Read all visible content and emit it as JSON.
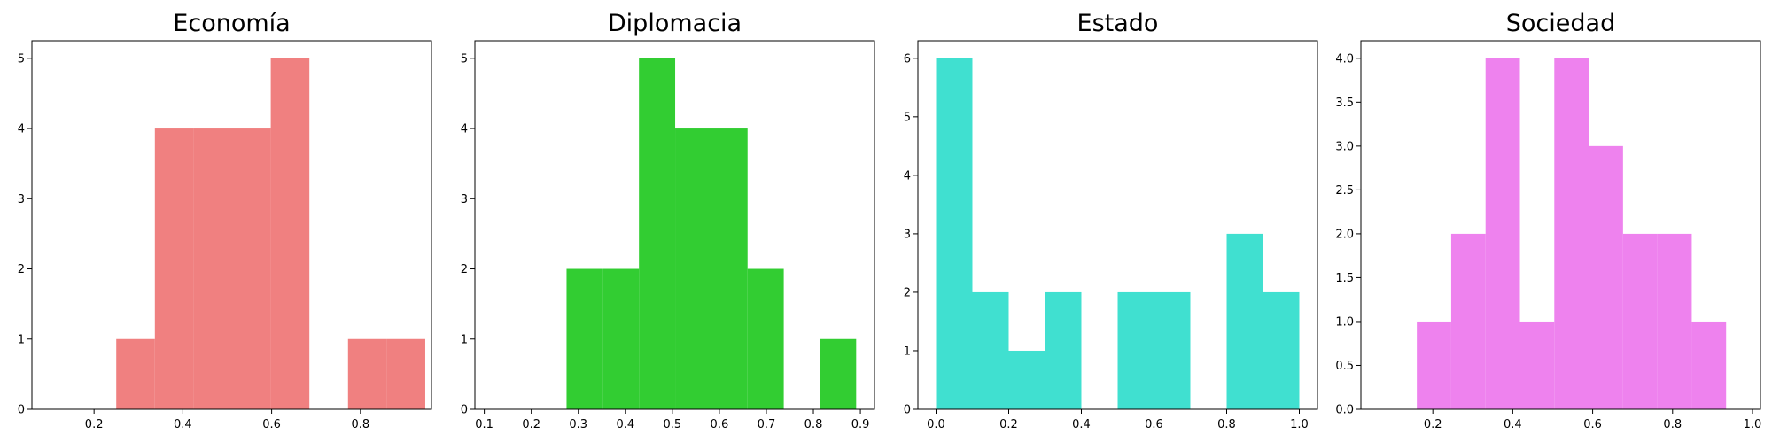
{
  "chart_data": [
    {
      "type": "bar",
      "title": "Economía",
      "color": "#f08080",
      "xlim": [
        0.06,
        0.96
      ],
      "ylim": [
        0,
        5.25
      ],
      "xticks": [
        0.2,
        0.4,
        0.6,
        0.8
      ],
      "yticks": [
        0,
        1,
        2,
        3,
        4,
        5
      ],
      "bins": [
        {
          "x0": 0.25,
          "x1": 0.337,
          "count": 1
        },
        {
          "x0": 0.337,
          "x1": 0.424,
          "count": 4
        },
        {
          "x0": 0.424,
          "x1": 0.511,
          "count": 4
        },
        {
          "x0": 0.511,
          "x1": 0.598,
          "count": 4
        },
        {
          "x0": 0.598,
          "x1": 0.685,
          "count": 5
        },
        {
          "x0": 0.772,
          "x1": 0.859,
          "count": 1
        },
        {
          "x0": 0.859,
          "x1": 0.946,
          "count": 1
        }
      ]
    },
    {
      "type": "bar",
      "title": "Diplomacia",
      "color": "#32cd32",
      "xlim": [
        0.08,
        0.93
      ],
      "ylim": [
        0,
        5.25
      ],
      "xticks": [
        0.1,
        0.2,
        0.3,
        0.4,
        0.5,
        0.6,
        0.7,
        0.8,
        0.9
      ],
      "yticks": [
        0,
        1,
        2,
        3,
        4,
        5
      ],
      "bins": [
        {
          "x0": 0.275,
          "x1": 0.352,
          "count": 2
        },
        {
          "x0": 0.352,
          "x1": 0.429,
          "count": 2
        },
        {
          "x0": 0.429,
          "x1": 0.506,
          "count": 5
        },
        {
          "x0": 0.506,
          "x1": 0.583,
          "count": 4
        },
        {
          "x0": 0.583,
          "x1": 0.66,
          "count": 4
        },
        {
          "x0": 0.66,
          "x1": 0.737,
          "count": 2
        },
        {
          "x0": 0.814,
          "x1": 0.891,
          "count": 1
        }
      ]
    },
    {
      "type": "bar",
      "title": "Estado",
      "color": "#40e0d0",
      "xlim": [
        -0.05,
        1.05
      ],
      "ylim": [
        0,
        6.3
      ],
      "xticks": [
        0.0,
        0.2,
        0.4,
        0.6,
        0.8,
        1.0
      ],
      "yticks": [
        0,
        1,
        2,
        3,
        4,
        5,
        6
      ],
      "bins": [
        {
          "x0": 0.0,
          "x1": 0.1,
          "count": 6
        },
        {
          "x0": 0.1,
          "x1": 0.2,
          "count": 2
        },
        {
          "x0": 0.2,
          "x1": 0.3,
          "count": 1
        },
        {
          "x0": 0.3,
          "x1": 0.4,
          "count": 2
        },
        {
          "x0": 0.5,
          "x1": 0.6,
          "count": 2
        },
        {
          "x0": 0.6,
          "x1": 0.7,
          "count": 2
        },
        {
          "x0": 0.8,
          "x1": 0.9,
          "count": 3
        },
        {
          "x0": 0.9,
          "x1": 1.0,
          "count": 2
        }
      ]
    },
    {
      "type": "bar",
      "title": "Sociedad",
      "color": "#ee82ee",
      "xlim": [
        0.02,
        1.02
      ],
      "ylim": [
        0,
        4.2
      ],
      "xticks": [
        0.2,
        0.4,
        0.6,
        0.8,
        1.0
      ],
      "yticks": [
        0.0,
        0.5,
        1.0,
        1.5,
        2.0,
        2.5,
        3.0,
        3.5,
        4.0
      ],
      "bins": [
        {
          "x0": 0.16,
          "x1": 0.246,
          "count": 1
        },
        {
          "x0": 0.246,
          "x1": 0.332,
          "count": 2
        },
        {
          "x0": 0.332,
          "x1": 0.418,
          "count": 4
        },
        {
          "x0": 0.418,
          "x1": 0.504,
          "count": 1
        },
        {
          "x0": 0.504,
          "x1": 0.59,
          "count": 4
        },
        {
          "x0": 0.59,
          "x1": 0.676,
          "count": 3
        },
        {
          "x0": 0.676,
          "x1": 0.762,
          "count": 2
        },
        {
          "x0": 0.762,
          "x1": 0.848,
          "count": 2
        },
        {
          "x0": 0.848,
          "x1": 0.934,
          "count": 1
        }
      ]
    }
  ]
}
